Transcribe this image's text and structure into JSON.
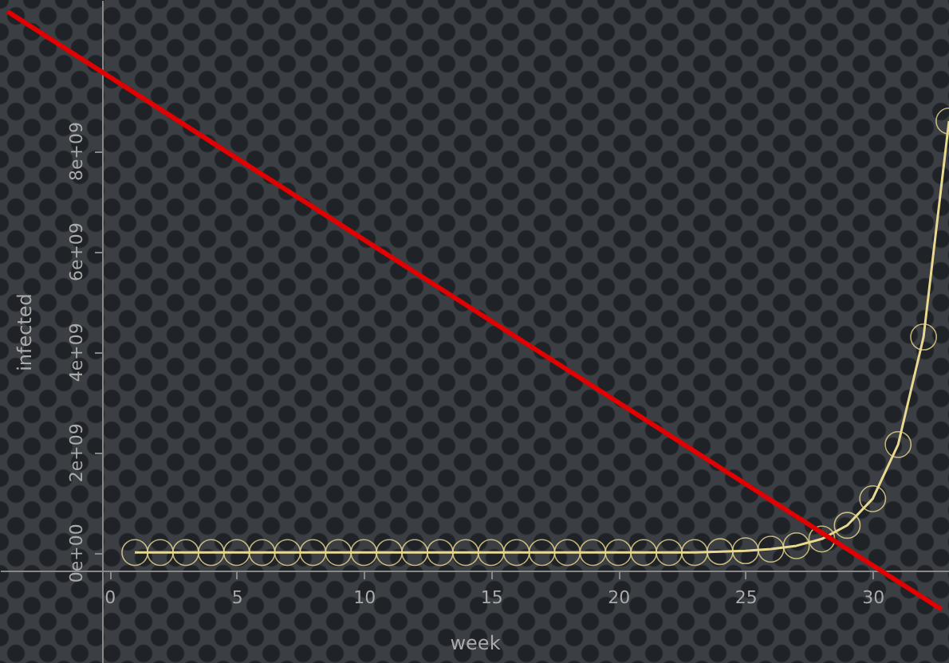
{
  "chart_data": {
    "type": "line",
    "xlabel": "week",
    "ylabel": "infected",
    "xlim": [
      -4.3,
      33
    ],
    "ylim": [
      -2200000000,
      11000000000
    ],
    "xticks": [
      0,
      5,
      10,
      15,
      20,
      25,
      30
    ],
    "yticks": [
      {
        "value": 0,
        "label": "0e+00"
      },
      {
        "value": 2000000000,
        "label": "2e+09"
      },
      {
        "value": 4000000000,
        "label": "4e+09"
      },
      {
        "value": 6000000000,
        "label": "6e+09"
      },
      {
        "value": 8000000000,
        "label": "8e+09"
      }
    ],
    "grid": false,
    "series": [
      {
        "color": "#e8d890",
        "marker": "circle",
        "line_style": "solid",
        "x": [
          1,
          2,
          3,
          4,
          5,
          6,
          7,
          8,
          9,
          10,
          11,
          12,
          13,
          14,
          15,
          16,
          17,
          18,
          19,
          20,
          21,
          22,
          23,
          24,
          25,
          26,
          27,
          28,
          29,
          30,
          31,
          32,
          33
        ],
        "values": [
          0,
          0,
          0,
          0,
          0,
          0,
          0,
          0,
          0,
          0,
          0,
          0,
          0,
          0,
          0,
          0,
          0,
          0,
          0,
          0,
          0,
          0,
          0,
          17000000,
          34000000,
          67000000,
          134000000,
          270000000,
          540000000,
          1070000000,
          2150000000,
          4290000000,
          8590000000
        ]
      },
      {
        "color": "#e00000",
        "marker": "none",
        "line_style": "solid",
        "x": [
          -4,
          32.7
        ],
        "values": [
          10770000000,
          -1130000000
        ]
      }
    ]
  }
}
